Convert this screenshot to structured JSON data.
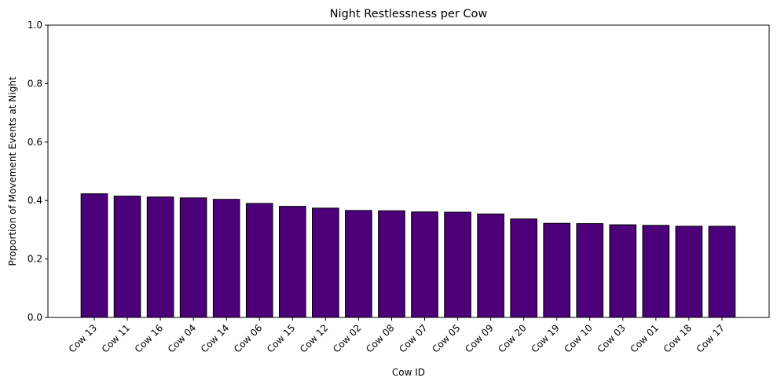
{
  "chart_data": {
    "type": "bar",
    "title": "Night Restlessness per Cow",
    "xlabel": "Cow ID",
    "ylabel": "Proportion of Movement Events at Night",
    "ylim": [
      0,
      1
    ],
    "yticks": [
      "0.0",
      "0.2",
      "0.4",
      "0.6",
      "0.8",
      "1.0"
    ],
    "grid": false,
    "bar_color": "#4b0079",
    "edge_color": "#000000",
    "categories": [
      "Cow 13",
      "Cow 11",
      "Cow 16",
      "Cow 04",
      "Cow 14",
      "Cow 06",
      "Cow 15",
      "Cow 12",
      "Cow 02",
      "Cow 08",
      "Cow 07",
      "Cow 05",
      "Cow 09",
      "Cow 20",
      "Cow 19",
      "Cow 10",
      "Cow 03",
      "Cow 01",
      "Cow 18",
      "Cow 17"
    ],
    "values": [
      0.423,
      0.415,
      0.412,
      0.409,
      0.404,
      0.39,
      0.38,
      0.374,
      0.366,
      0.365,
      0.361,
      0.36,
      0.354,
      0.337,
      0.322,
      0.321,
      0.317,
      0.315,
      0.312,
      0.312
    ]
  }
}
